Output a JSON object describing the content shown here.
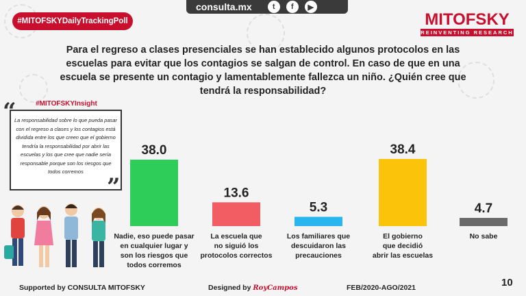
{
  "header": {
    "url": "consulta.mx",
    "social_icons": [
      "twitter-icon",
      "facebook-icon",
      "youtube-icon"
    ],
    "poll_badge": "#MITOFSKYDailyTrackingPoll",
    "brand_name": "MITOFSKY",
    "brand_tagline": "REINVENTING RESEARCH"
  },
  "question": "Para el regreso a clases presenciales se han establecido algunos protocolos en las escuelas para evitar que los contagios se salgan de control. En caso de que en una escuela se presente un contagio y lamentablemente fallezca un niño. ¿Quién cree que tendrá la responsabilidad?",
  "insight": {
    "title": "#MITOFSKYInsight",
    "text": "La responsabilidad sobre lo que pueda pasar con el regreso a clases y los contagios está dividida entre los que creen que el gobierno tendría la responsabilidad por abrir las escuelas y los que cree que nadie sería responsable porque son los riesgos que todos corremos"
  },
  "chart_data": {
    "type": "bar",
    "categories": [
      "Nadie, eso puede pasar en cualquier lugar y son los riesgos que todos corremos",
      "La escuela que no siguió los protocolos correctos",
      "Los familiares que descuidaron las precauciones",
      "El gobierno que decidió abrir las escuelas",
      "No sabe"
    ],
    "category_lines": [
      [
        "Nadie, eso puede pasar",
        "en cualquier lugar y",
        "son los riesgos que",
        "todos corremos"
      ],
      [
        "La escuela que",
        "no siguió los",
        "protocolos correctos"
      ],
      [
        "Los familiares que",
        "descuidaron las",
        "precauciones"
      ],
      [
        "El gobierno",
        "que decidió",
        "abrir las escuelas"
      ],
      [
        "No sabe"
      ]
    ],
    "values": [
      38.0,
      13.6,
      5.3,
      38.4,
      4.7
    ],
    "value_labels": [
      "38.0",
      "13.6",
      "5.3",
      "38.4",
      "4.7"
    ],
    "colors": [
      "#2ecc59",
      "#f25c63",
      "#29b5ee",
      "#fbc40a",
      "#6a6a6a"
    ],
    "ylim": [
      0,
      40
    ],
    "grid": false,
    "legend": "none"
  },
  "footer": {
    "supported": "Supported by  CONSULTA  MITOFSKY",
    "designed": "Designed by",
    "designer": "RoyCampos",
    "period": "FEB/2020-AGO/2021",
    "page": "10"
  }
}
